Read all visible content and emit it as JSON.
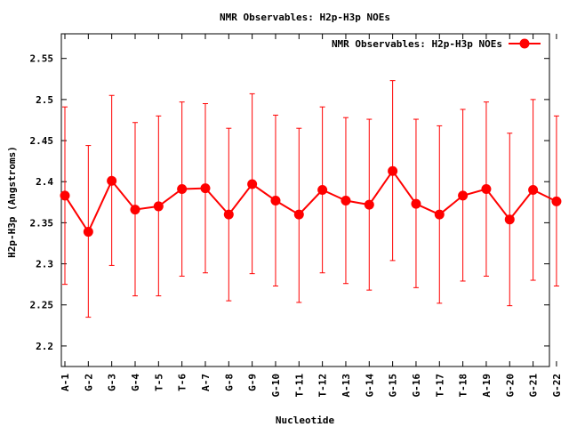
{
  "chart_data": {
    "type": "line",
    "title": "NMR Observables: H2p-H3p NOEs",
    "xlabel": "Nucleotide",
    "ylabel": "H2p-H3p (Angstroms)",
    "legend": "top-right",
    "grid": false,
    "ylim": [
      2.175,
      2.58
    ],
    "yticks": [
      "2.2",
      "2.25",
      "2.3",
      "2.35",
      "2.4",
      "2.45",
      "2.5",
      "2.55"
    ],
    "categories": [
      "A-1",
      "G-2",
      "G-3",
      "G-4",
      "T-5",
      "T-6",
      "A-7",
      "G-8",
      "G-9",
      "G-10",
      "T-11",
      "T-12",
      "A-13",
      "G-14",
      "G-15",
      "G-16",
      "T-17",
      "T-18",
      "A-19",
      "G-20",
      "G-21",
      "G-22"
    ],
    "series": [
      {
        "name": "NMR Observables: H2p-H3p NOEs",
        "color": "#ff0000",
        "values": [
          2.383,
          2.339,
          2.401,
          2.366,
          2.37,
          2.391,
          2.392,
          2.36,
          2.397,
          2.377,
          2.36,
          2.39,
          2.377,
          2.372,
          2.413,
          2.373,
          2.36,
          2.383,
          2.391,
          2.354,
          2.39,
          2.376
        ],
        "error_low": [
          2.275,
          2.235,
          2.298,
          2.261,
          2.261,
          2.285,
          2.289,
          2.255,
          2.288,
          2.273,
          2.253,
          2.289,
          2.276,
          2.268,
          2.304,
          2.271,
          2.252,
          2.279,
          2.285,
          2.249,
          2.28,
          2.273
        ],
        "error_high": [
          2.491,
          2.444,
          2.505,
          2.472,
          2.48,
          2.497,
          2.495,
          2.465,
          2.507,
          2.481,
          2.465,
          2.491,
          2.478,
          2.476,
          2.523,
          2.476,
          2.468,
          2.488,
          2.497,
          2.459,
          2.5,
          2.48
        ]
      }
    ]
  }
}
